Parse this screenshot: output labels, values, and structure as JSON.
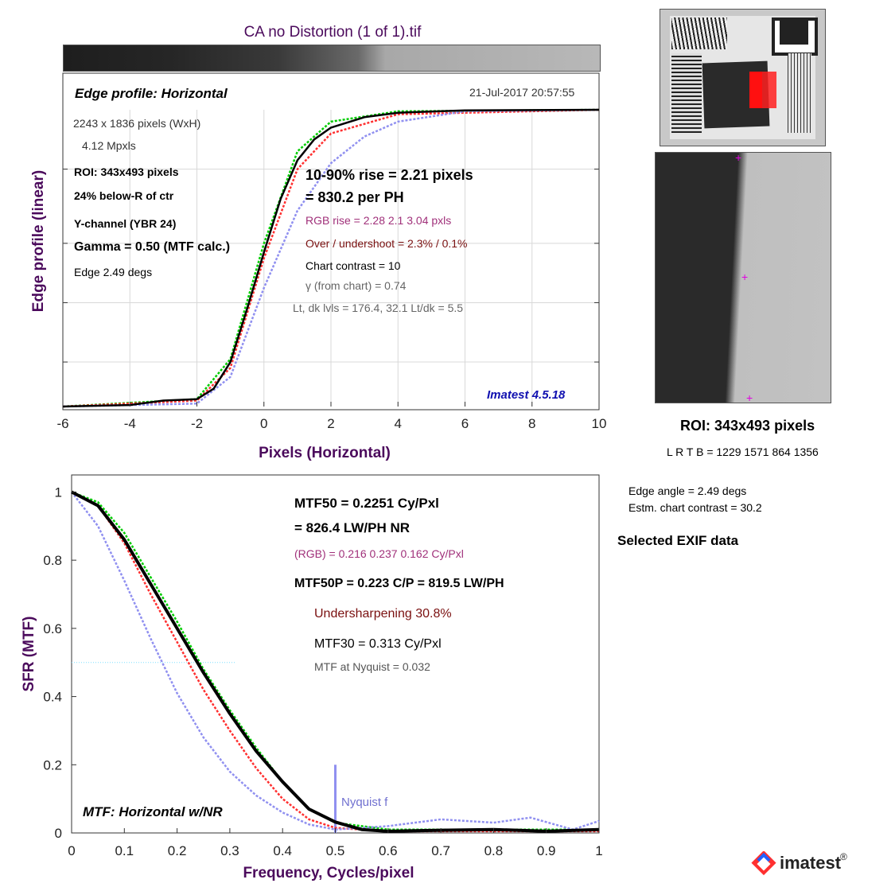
{
  "title": "CA no Distortion (1 of 1).tif",
  "top_panel": {
    "heading": "Edge profile: Horizontal",
    "timestamp": "21-Jul-2017 20:57:55",
    "info": [
      "2243 x 1836 pixels (WxH)",
      "4.12 Mpxls",
      "ROI:  343x493 pixels",
      "24% below-R of ctr",
      "Y-channel  (YBR 24)",
      "Gamma = 0.50 (MTF calc.)",
      "Edge   2.49 degs"
    ],
    "rise_line1": "10-90% rise = 2.21 pixels",
    "rise_line2": "=  830.2 per PH",
    "rgb_rise": "RGB rise =   2.28     2.1    3.04 pxls",
    "overshoot": "Over / undershoot =  2.3% /  0.1%",
    "chart_contrast": "Chart contrast = 10",
    "gamma_chart": "γ (from chart) =  0.74",
    "levels": "Lt, dk lvls =  176.4,   32.1   Lt/dk =    5.5",
    "version": "Imatest 4.5.18",
    "xlabel": "Pixels (Horizontal)",
    "ylabel": "Edge profile (linear)"
  },
  "bottom_panel": {
    "mtf50": "MTF50 = 0.2251 Cy/Pxl",
    "lwph": "= 826.4 LW/PH  NR",
    "rgb": "(RGB) = 0.216  0.237  0.162 Cy/Pxl",
    "mtf50p": "MTF50P = 0.223 C/P = 819.5 LW/PH",
    "undersharpening": "Undersharpening 30.8%",
    "mtf30": "MTF30 = 0.313 Cy/Pxl",
    "nyquist_mtf": "MTF at Nyquist = 0.032",
    "nyquist_label": "Nyquist f",
    "mode": "MTF: Horizontal w/NR",
    "xlabel": "Frequency, Cycles/pixel",
    "ylabel": "SFR (MTF)"
  },
  "right_panel": {
    "roi": "ROI:  343x493 pixels",
    "lrtb": "L R  T B = 1229 1571  864 1356",
    "edge_angle": "Edge angle = 2.49 degs",
    "chart_contrast": "Estm. chart contrast = 30.2",
    "exif": "Selected EXIF data"
  },
  "logo": {
    "text": "imatest",
    "reg": "®"
  },
  "colors": {
    "title": "#4b0a5c",
    "magenta": "#a0307a",
    "darkred": "#7a1010",
    "blue_text": "#1010b0",
    "lavender": "#9090f0",
    "green": "#00cc00",
    "red": "#ff3030",
    "crosshair": "#e000e0"
  },
  "chart_data": [
    {
      "type": "line",
      "xlabel": "Pixels (Horizontal)",
      "ylabel": "Edge profile (linear)",
      "xlim": [
        -6,
        10
      ],
      "ylim": [
        0,
        1
      ],
      "xticks": [
        -6,
        -4,
        -2,
        0,
        2,
        4,
        6,
        8,
        10
      ],
      "grid": true,
      "series": [
        {
          "color": "#000000",
          "values": [
            [
              -6,
              0.0
            ],
            [
              -4,
              0.005
            ],
            [
              -3,
              0.02
            ],
            [
              -2,
              0.025
            ],
            [
              -1.5,
              0.06
            ],
            [
              -1,
              0.15
            ],
            [
              -0.5,
              0.33
            ],
            [
              0,
              0.52
            ],
            [
              0.5,
              0.7
            ],
            [
              1,
              0.83
            ],
            [
              1.5,
              0.9
            ],
            [
              2,
              0.94
            ],
            [
              3,
              0.975
            ],
            [
              4,
              0.99
            ],
            [
              6,
              0.998
            ],
            [
              10,
              1.0
            ]
          ]
        },
        {
          "color": "#00cc00",
          "values": [
            [
              -6,
              0.0
            ],
            [
              -2,
              0.025
            ],
            [
              -1,
              0.16
            ],
            [
              0,
              0.55
            ],
            [
              1,
              0.86
            ],
            [
              2,
              0.96
            ],
            [
              4,
              0.995
            ],
            [
              10,
              1.0
            ]
          ]
        },
        {
          "color": "#ff3030",
          "values": [
            [
              -6,
              0.0
            ],
            [
              -2,
              0.02
            ],
            [
              -1,
              0.13
            ],
            [
              0,
              0.5
            ],
            [
              1,
              0.8
            ],
            [
              2,
              0.92
            ],
            [
              4,
              0.985
            ],
            [
              10,
              1.0
            ]
          ]
        },
        {
          "color": "#9090f0",
          "values": [
            [
              -6,
              0.0
            ],
            [
              -2,
              0.01
            ],
            [
              -1,
              0.1
            ],
            [
              0,
              0.4
            ],
            [
              1,
              0.66
            ],
            [
              2,
              0.82
            ],
            [
              3,
              0.91
            ],
            [
              4,
              0.96
            ],
            [
              6,
              0.995
            ],
            [
              10,
              1.0
            ]
          ]
        }
      ]
    },
    {
      "type": "line",
      "xlabel": "Frequency, Cycles/pixel",
      "ylabel": "SFR (MTF)",
      "xlim": [
        0,
        1
      ],
      "ylim": [
        0,
        1.05
      ],
      "xticks": [
        0,
        0.1,
        0.2,
        0.3,
        0.4,
        0.5,
        0.6,
        0.7,
        0.8,
        0.9,
        1
      ],
      "yticks": [
        0,
        0.2,
        0.4,
        0.6,
        0.8,
        1
      ],
      "grid": false,
      "series": [
        {
          "color": "#000000",
          "values": [
            [
              0,
              1.0
            ],
            [
              0.05,
              0.96
            ],
            [
              0.1,
              0.86
            ],
            [
              0.15,
              0.73
            ],
            [
              0.2,
              0.6
            ],
            [
              0.25,
              0.47
            ],
            [
              0.3,
              0.35
            ],
            [
              0.35,
              0.24
            ],
            [
              0.4,
              0.15
            ],
            [
              0.45,
              0.07
            ],
            [
              0.5,
              0.032
            ],
            [
              0.55,
              0.01
            ],
            [
              0.6,
              0.005
            ],
            [
              0.7,
              0.008
            ],
            [
              0.8,
              0.01
            ],
            [
              0.9,
              0.005
            ],
            [
              1,
              0.01
            ]
          ]
        },
        {
          "color": "#00cc00",
          "values": [
            [
              0,
              1.0
            ],
            [
              0.05,
              0.97
            ],
            [
              0.1,
              0.88
            ],
            [
              0.15,
              0.75
            ],
            [
              0.2,
              0.62
            ],
            [
              0.25,
              0.48
            ],
            [
              0.3,
              0.36
            ],
            [
              0.35,
              0.25
            ],
            [
              0.4,
              0.15
            ],
            [
              0.45,
              0.07
            ],
            [
              0.5,
              0.03
            ],
            [
              0.6,
              0.01
            ],
            [
              1,
              0.01
            ]
          ]
        },
        {
          "color": "#ff3030",
          "values": [
            [
              0,
              1.0
            ],
            [
              0.05,
              0.96
            ],
            [
              0.1,
              0.85
            ],
            [
              0.15,
              0.7
            ],
            [
              0.2,
              0.56
            ],
            [
              0.25,
              0.42
            ],
            [
              0.3,
              0.3
            ],
            [
              0.35,
              0.19
            ],
            [
              0.4,
              0.1
            ],
            [
              0.45,
              0.04
            ],
            [
              0.5,
              0.015
            ],
            [
              0.6,
              0.005
            ],
            [
              1,
              0.005
            ]
          ]
        },
        {
          "color": "#9090f0",
          "values": [
            [
              0,
              1.0
            ],
            [
              0.05,
              0.9
            ],
            [
              0.1,
              0.74
            ],
            [
              0.15,
              0.57
            ],
            [
              0.2,
              0.41
            ],
            [
              0.25,
              0.28
            ],
            [
              0.3,
              0.18
            ],
            [
              0.35,
              0.11
            ],
            [
              0.4,
              0.06
            ],
            [
              0.45,
              0.025
            ],
            [
              0.5,
              0.01
            ],
            [
              0.6,
              0.02
            ],
            [
              0.7,
              0.04
            ],
            [
              0.8,
              0.03
            ],
            [
              0.87,
              0.045
            ],
            [
              0.95,
              0.01
            ],
            [
              1,
              0.035
            ]
          ]
        }
      ],
      "annotations": [
        {
          "text": "Nyquist f",
          "x": 0.5
        }
      ],
      "reference_line_y": 0.5
    }
  ]
}
